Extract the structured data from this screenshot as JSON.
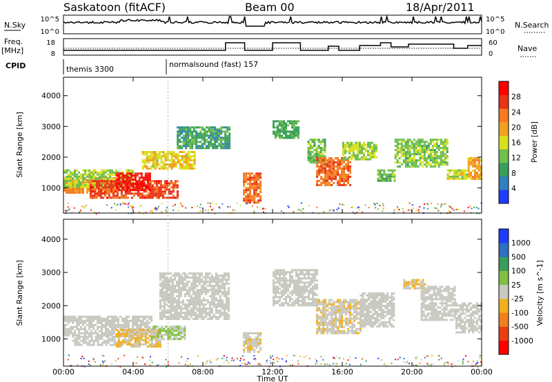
{
  "header": {
    "station": "Saskatoon (fitACF)",
    "beam": "Beam 00",
    "date": "18/Apr/2011"
  },
  "strip_labels": {
    "nsky": "N.Sky",
    "nsearch": "N.Search",
    "freq": "Freq.",
    "freq_unit": "[MHz]",
    "nave": "Nave",
    "cpid": "CPID"
  },
  "strip_ticks": {
    "nsky_top": "10^5",
    "nsky_bottom": "10^0",
    "freq_top": "18",
    "freq_bottom": "8",
    "nave_top": "60",
    "nave_bottom": "0"
  },
  "cpid_segments": [
    {
      "label": "themis 3300",
      "start_hour": 0.0,
      "end_hour": 6.0
    },
    {
      "label": "normalsound (fast) 157",
      "start_hour": 6.0,
      "end_hour": 24.0
    }
  ],
  "colors": {
    "power_scale": [
      "#1e3cff",
      "#2f7fbf",
      "#3a9e5a",
      "#6fbf4f",
      "#d9e020",
      "#f0a020",
      "#f57a20",
      "#e83418",
      "#ff0000"
    ],
    "velocity_scale": [
      "#1e3cff",
      "#2f6fc0",
      "#3a9e5a",
      "#80c040",
      "#c8c8c0",
      "#f0b020",
      "#f08020",
      "#e84010",
      "#ff0000"
    ],
    "ground_scatter": "#c8c8c0"
  },
  "chart_data": [
    {
      "type": "heatmap",
      "name": "power",
      "ylabel": "Slant Range [km]",
      "ylim": [
        180,
        4600
      ],
      "yticks": [
        1000,
        2000,
        3000,
        4000
      ],
      "xlim": [
        0,
        24
      ],
      "xticks": [
        "00:00",
        "04:00",
        "08:00",
        "12:00",
        "16:00",
        "20:00",
        "00:00"
      ],
      "colorbar": {
        "label": "Power [dB]",
        "range": [
          0,
          32
        ],
        "ticks": [
          "4",
          "8",
          "12",
          "16",
          "20",
          "24",
          "28"
        ]
      },
      "regions": [
        {
          "t": [
            0.0,
            3.0
          ],
          "r": [
            850,
            1350
          ],
          "v": 22
        },
        {
          "t": [
            0.0,
            4.0
          ],
          "r": [
            1050,
            1600
          ],
          "v": 14
        },
        {
          "t": [
            1.5,
            6.5
          ],
          "r": [
            700,
            1250
          ],
          "v": 26
        },
        {
          "t": [
            3.0,
            5.0
          ],
          "r": [
            900,
            1500
          ],
          "v": 29
        },
        {
          "t": [
            4.5,
            7.5
          ],
          "r": [
            1600,
            2200
          ],
          "v": 17
        },
        {
          "t": [
            6.5,
            9.5
          ],
          "r": [
            2300,
            3000
          ],
          "v": 9
        },
        {
          "t": [
            10.3,
            11.3
          ],
          "r": [
            500,
            1500
          ],
          "v": 24
        },
        {
          "t": [
            12.0,
            13.5
          ],
          "r": [
            2600,
            3200
          ],
          "v": 10
        },
        {
          "t": [
            14.0,
            15.0
          ],
          "r": [
            1800,
            2600
          ],
          "v": 12
        },
        {
          "t": [
            14.5,
            16.5
          ],
          "r": [
            1100,
            2000
          ],
          "v": 24
        },
        {
          "t": [
            16.0,
            18.0
          ],
          "r": [
            1900,
            2500
          ],
          "v": 14
        },
        {
          "t": [
            18.0,
            19.0
          ],
          "r": [
            1200,
            1600
          ],
          "v": 12
        },
        {
          "t": [
            19.0,
            22.0
          ],
          "r": [
            1700,
            2600
          ],
          "v": 13
        },
        {
          "t": [
            22.0,
            23.2
          ],
          "r": [
            1300,
            1600
          ],
          "v": 16
        },
        {
          "t": [
            23.2,
            24.0
          ],
          "r": [
            1300,
            2000
          ],
          "v": 20
        }
      ]
    },
    {
      "type": "heatmap",
      "name": "velocity",
      "ylabel": "Slant Range [km]",
      "ylim": [
        180,
        4600
      ],
      "yticks": [
        1000,
        2000,
        3000,
        4000
      ],
      "xlim": [
        0,
        24
      ],
      "xticks": [
        "00:00",
        "04:00",
        "08:00",
        "12:00",
        "16:00",
        "20:00",
        "00:00"
      ],
      "xlabel": "Time UT",
      "colorbar": {
        "label": "Velocity [m s^-1]",
        "range": [
          -1250,
          1250
        ],
        "ticks": [
          "1000",
          "500",
          "100",
          "25",
          "-25",
          "-100",
          "-500",
          "-1000"
        ]
      },
      "regions": [
        {
          "t": [
            0.0,
            5.0
          ],
          "r": [
            1100,
            1700
          ],
          "v": 0
        },
        {
          "t": [
            0.5,
            3.0
          ],
          "r": [
            800,
            1100
          ],
          "v": 0
        },
        {
          "t": [
            3.0,
            5.5
          ],
          "r": [
            800,
            1300
          ],
          "v": -150
        },
        {
          "t": [
            5.0,
            7.0
          ],
          "r": [
            1000,
            1400
          ],
          "v": 150
        },
        {
          "t": [
            5.5,
            9.5
          ],
          "r": [
            1600,
            3000
          ],
          "v": 0
        },
        {
          "t": [
            10.3,
            11.3
          ],
          "r": [
            600,
            1200
          ],
          "v": -100
        },
        {
          "t": [
            12.0,
            14.5
          ],
          "r": [
            2000,
            3100
          ],
          "v": 0
        },
        {
          "t": [
            14.5,
            17.0
          ],
          "r": [
            1200,
            2200
          ],
          "v": -100
        },
        {
          "t": [
            17.0,
            19.0
          ],
          "r": [
            1400,
            2400
          ],
          "v": 0
        },
        {
          "t": [
            19.5,
            20.8
          ],
          "r": [
            2500,
            2800
          ],
          "v": -150
        },
        {
          "t": [
            20.5,
            22.5
          ],
          "r": [
            1600,
            2600
          ],
          "v": 0
        },
        {
          "t": [
            22.5,
            24.0
          ],
          "r": [
            1200,
            2100
          ],
          "v": 0
        }
      ]
    }
  ]
}
